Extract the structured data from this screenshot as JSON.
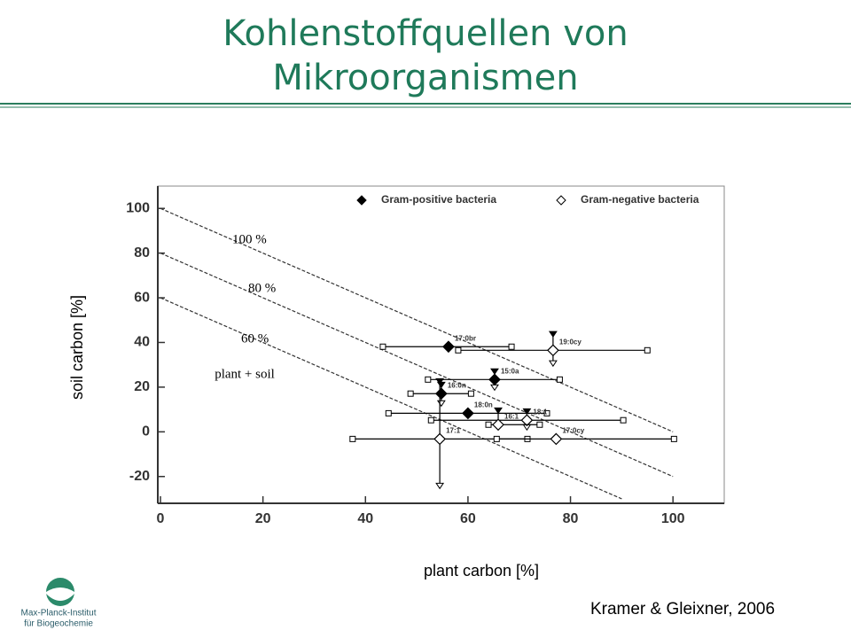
{
  "slide": {
    "title_lines": [
      "Kohlenstoffquellen von",
      "Mikroorganismen"
    ],
    "citation": "Kramer & Gleixner, 2006",
    "logo_lines": [
      "Max-Planck-Institut",
      "für Biogeochemie"
    ]
  },
  "chart_data": {
    "type": "scatter",
    "xlabel": "plant carbon [%]",
    "ylabel": "soil carbon [%]",
    "xlim": [
      0,
      110
    ],
    "ylim": [
      -32,
      110
    ],
    "xticks": [
      0,
      20,
      40,
      60,
      80,
      100
    ],
    "yticks": [
      -20,
      0,
      20,
      40,
      60,
      80,
      100
    ],
    "annotation": "plant + soil",
    "reference_lines": [
      {
        "label": "100 %",
        "x": [
          0,
          100
        ],
        "y": [
          100,
          0
        ]
      },
      {
        "label": "80 %",
        "x": [
          0,
          100
        ],
        "y": [
          80,
          -20
        ]
      },
      {
        "label": "60 %",
        "x": [
          0,
          90
        ],
        "y": [
          60,
          -30
        ]
      }
    ],
    "series": [
      {
        "name": "Gram-positive bacteria",
        "color": "#000000",
        "filled": true,
        "labels": [
          "17:0br",
          "15:0a",
          "16:0n",
          "18:0n"
        ],
        "x": [
          56.2,
          65.2,
          54.8,
          60.0
        ],
        "values": [
          38.1,
          23.4,
          17.1,
          8.3
        ],
        "x_range": [
          [
            43.4,
            68.5
          ],
          [
            52.2,
            77.9
          ],
          [
            48.8,
            60.6
          ],
          [
            44.5,
            75.4
          ]
        ],
        "y_range": [
          null,
          [
            27,
            19.8
          ],
          [
            21,
            12.7
          ],
          null
        ]
      },
      {
        "name": "Gram-negative bacteria",
        "color": "#000000",
        "filled": false,
        "labels": [
          "19:0cy",
          "18:1",
          "16:1",
          "17:1",
          "17:0cy"
        ],
        "x": [
          76.6,
          71.5,
          65.9,
          54.5,
          77.2
        ],
        "values": [
          36.5,
          5.2,
          3.2,
          -3.2,
          -3.2
        ],
        "x_range": [
          [
            58.1,
            95.0
          ],
          [
            52.8,
            90.3
          ],
          [
            64,
            74
          ],
          [
            37.5,
            71.6
          ],
          [
            65.6,
            100.2
          ]
        ],
        "y_range": [
          [
            43.7,
            30.6
          ],
          [
            9.1,
            2
          ],
          [
            9.5,
            2
          ],
          [
            22.6,
            -24.2
          ],
          null
        ]
      }
    ]
  }
}
